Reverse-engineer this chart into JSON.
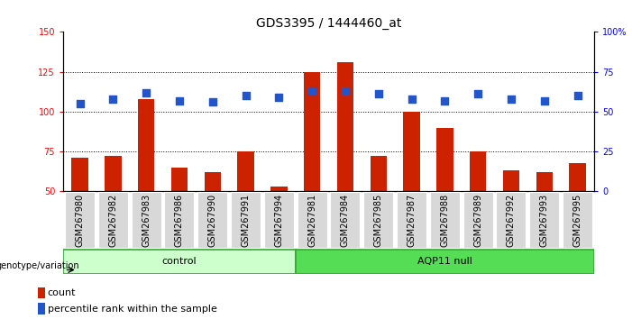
{
  "title": "GDS3395 / 1444460_at",
  "samples": [
    "GSM267980",
    "GSM267982",
    "GSM267983",
    "GSM267986",
    "GSM267990",
    "GSM267991",
    "GSM267994",
    "GSM267981",
    "GSM267984",
    "GSM267985",
    "GSM267987",
    "GSM267988",
    "GSM267989",
    "GSM267992",
    "GSM267993",
    "GSM267995"
  ],
  "count_values": [
    71,
    72,
    108,
    65,
    62,
    75,
    53,
    125,
    131,
    72,
    100,
    90,
    75,
    63,
    62,
    68
  ],
  "percentile_values": [
    55,
    58,
    62,
    57,
    56,
    60,
    59,
    63,
    63,
    61,
    58,
    57,
    61,
    58,
    57,
    60
  ],
  "n_control": 7,
  "n_aqp11": 9,
  "bar_color": "#cc2200",
  "dot_color": "#2255cc",
  "ylim_left": [
    50,
    150
  ],
  "ylim_right": [
    0,
    100
  ],
  "y_ticks_left": [
    50,
    75,
    100,
    125,
    150
  ],
  "y_ticks_right": [
    0,
    25,
    50,
    75,
    100
  ],
  "y_tick_right_labels": [
    "0",
    "25",
    "50",
    "75",
    "100%"
  ],
  "control_color": "#ccffcc",
  "aqp11_color": "#55dd55",
  "genotype_label": "genotype/variation",
  "control_label": "control",
  "aqp11_label": "AQP11 null",
  "legend_count": "count",
  "legend_percentile": "percentile rank within the sample",
  "dot_size": 35,
  "bar_width": 0.5,
  "title_fontsize": 10,
  "axis_fontsize": 7,
  "label_fontsize": 8,
  "tick_bg_color": "#d8d8d8",
  "group_border_color": "#33aa33"
}
